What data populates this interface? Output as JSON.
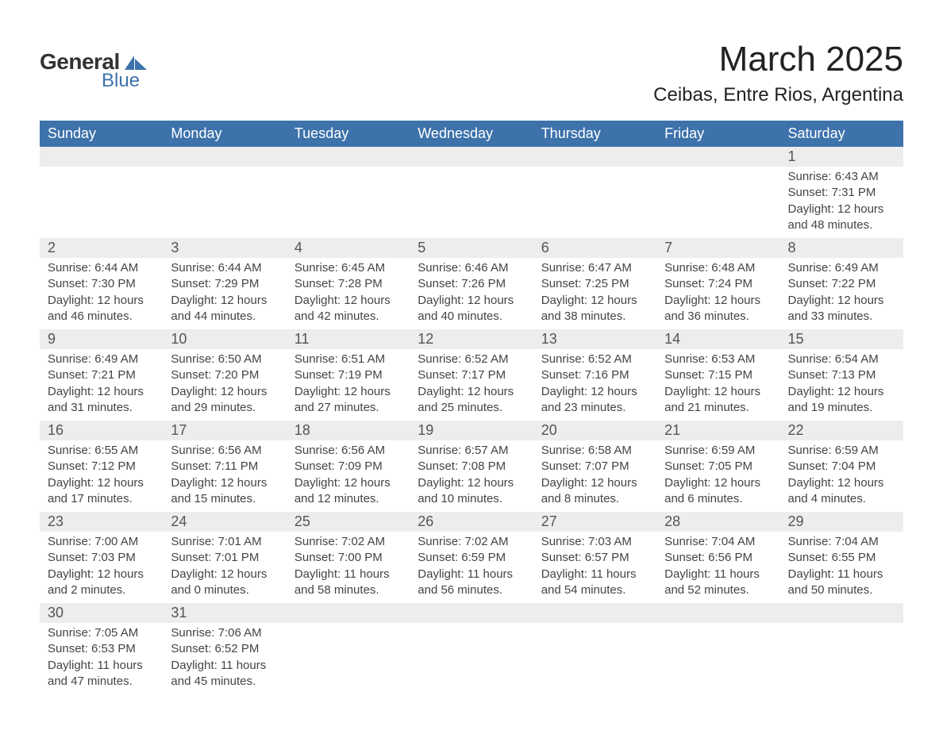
{
  "brand": {
    "text1": "General",
    "text2": "Blue",
    "logo_color": "#3d72ab",
    "text_color": "#333333"
  },
  "title": {
    "month": "March 2025",
    "location": "Ceibas, Entre Rios, Argentina"
  },
  "colors": {
    "header_bg": "#3d72ab",
    "header_text": "#ffffff",
    "daynum_bg": "#ededed",
    "row_border": "#3d72ab",
    "body_text": "#444444",
    "background": "#ffffff"
  },
  "calendar": {
    "day_headers": [
      "Sunday",
      "Monday",
      "Tuesday",
      "Wednesday",
      "Thursday",
      "Friday",
      "Saturday"
    ],
    "weeks": [
      [
        null,
        null,
        null,
        null,
        null,
        null,
        {
          "day": "1",
          "sunrise": "Sunrise: 6:43 AM",
          "sunset": "Sunset: 7:31 PM",
          "daylight1": "Daylight: 12 hours",
          "daylight2": "and 48 minutes."
        }
      ],
      [
        {
          "day": "2",
          "sunrise": "Sunrise: 6:44 AM",
          "sunset": "Sunset: 7:30 PM",
          "daylight1": "Daylight: 12 hours",
          "daylight2": "and 46 minutes."
        },
        {
          "day": "3",
          "sunrise": "Sunrise: 6:44 AM",
          "sunset": "Sunset: 7:29 PM",
          "daylight1": "Daylight: 12 hours",
          "daylight2": "and 44 minutes."
        },
        {
          "day": "4",
          "sunrise": "Sunrise: 6:45 AM",
          "sunset": "Sunset: 7:28 PM",
          "daylight1": "Daylight: 12 hours",
          "daylight2": "and 42 minutes."
        },
        {
          "day": "5",
          "sunrise": "Sunrise: 6:46 AM",
          "sunset": "Sunset: 7:26 PM",
          "daylight1": "Daylight: 12 hours",
          "daylight2": "and 40 minutes."
        },
        {
          "day": "6",
          "sunrise": "Sunrise: 6:47 AM",
          "sunset": "Sunset: 7:25 PM",
          "daylight1": "Daylight: 12 hours",
          "daylight2": "and 38 minutes."
        },
        {
          "day": "7",
          "sunrise": "Sunrise: 6:48 AM",
          "sunset": "Sunset: 7:24 PM",
          "daylight1": "Daylight: 12 hours",
          "daylight2": "and 36 minutes."
        },
        {
          "day": "8",
          "sunrise": "Sunrise: 6:49 AM",
          "sunset": "Sunset: 7:22 PM",
          "daylight1": "Daylight: 12 hours",
          "daylight2": "and 33 minutes."
        }
      ],
      [
        {
          "day": "9",
          "sunrise": "Sunrise: 6:49 AM",
          "sunset": "Sunset: 7:21 PM",
          "daylight1": "Daylight: 12 hours",
          "daylight2": "and 31 minutes."
        },
        {
          "day": "10",
          "sunrise": "Sunrise: 6:50 AM",
          "sunset": "Sunset: 7:20 PM",
          "daylight1": "Daylight: 12 hours",
          "daylight2": "and 29 minutes."
        },
        {
          "day": "11",
          "sunrise": "Sunrise: 6:51 AM",
          "sunset": "Sunset: 7:19 PM",
          "daylight1": "Daylight: 12 hours",
          "daylight2": "and 27 minutes."
        },
        {
          "day": "12",
          "sunrise": "Sunrise: 6:52 AM",
          "sunset": "Sunset: 7:17 PM",
          "daylight1": "Daylight: 12 hours",
          "daylight2": "and 25 minutes."
        },
        {
          "day": "13",
          "sunrise": "Sunrise: 6:52 AM",
          "sunset": "Sunset: 7:16 PM",
          "daylight1": "Daylight: 12 hours",
          "daylight2": "and 23 minutes."
        },
        {
          "day": "14",
          "sunrise": "Sunrise: 6:53 AM",
          "sunset": "Sunset: 7:15 PM",
          "daylight1": "Daylight: 12 hours",
          "daylight2": "and 21 minutes."
        },
        {
          "day": "15",
          "sunrise": "Sunrise: 6:54 AM",
          "sunset": "Sunset: 7:13 PM",
          "daylight1": "Daylight: 12 hours",
          "daylight2": "and 19 minutes."
        }
      ],
      [
        {
          "day": "16",
          "sunrise": "Sunrise: 6:55 AM",
          "sunset": "Sunset: 7:12 PM",
          "daylight1": "Daylight: 12 hours",
          "daylight2": "and 17 minutes."
        },
        {
          "day": "17",
          "sunrise": "Sunrise: 6:56 AM",
          "sunset": "Sunset: 7:11 PM",
          "daylight1": "Daylight: 12 hours",
          "daylight2": "and 15 minutes."
        },
        {
          "day": "18",
          "sunrise": "Sunrise: 6:56 AM",
          "sunset": "Sunset: 7:09 PM",
          "daylight1": "Daylight: 12 hours",
          "daylight2": "and 12 minutes."
        },
        {
          "day": "19",
          "sunrise": "Sunrise: 6:57 AM",
          "sunset": "Sunset: 7:08 PM",
          "daylight1": "Daylight: 12 hours",
          "daylight2": "and 10 minutes."
        },
        {
          "day": "20",
          "sunrise": "Sunrise: 6:58 AM",
          "sunset": "Sunset: 7:07 PM",
          "daylight1": "Daylight: 12 hours",
          "daylight2": "and 8 minutes."
        },
        {
          "day": "21",
          "sunrise": "Sunrise: 6:59 AM",
          "sunset": "Sunset: 7:05 PM",
          "daylight1": "Daylight: 12 hours",
          "daylight2": "and 6 minutes."
        },
        {
          "day": "22",
          "sunrise": "Sunrise: 6:59 AM",
          "sunset": "Sunset: 7:04 PM",
          "daylight1": "Daylight: 12 hours",
          "daylight2": "and 4 minutes."
        }
      ],
      [
        {
          "day": "23",
          "sunrise": "Sunrise: 7:00 AM",
          "sunset": "Sunset: 7:03 PM",
          "daylight1": "Daylight: 12 hours",
          "daylight2": "and 2 minutes."
        },
        {
          "day": "24",
          "sunrise": "Sunrise: 7:01 AM",
          "sunset": "Sunset: 7:01 PM",
          "daylight1": "Daylight: 12 hours",
          "daylight2": "and 0 minutes."
        },
        {
          "day": "25",
          "sunrise": "Sunrise: 7:02 AM",
          "sunset": "Sunset: 7:00 PM",
          "daylight1": "Daylight: 11 hours",
          "daylight2": "and 58 minutes."
        },
        {
          "day": "26",
          "sunrise": "Sunrise: 7:02 AM",
          "sunset": "Sunset: 6:59 PM",
          "daylight1": "Daylight: 11 hours",
          "daylight2": "and 56 minutes."
        },
        {
          "day": "27",
          "sunrise": "Sunrise: 7:03 AM",
          "sunset": "Sunset: 6:57 PM",
          "daylight1": "Daylight: 11 hours",
          "daylight2": "and 54 minutes."
        },
        {
          "day": "28",
          "sunrise": "Sunrise: 7:04 AM",
          "sunset": "Sunset: 6:56 PM",
          "daylight1": "Daylight: 11 hours",
          "daylight2": "and 52 minutes."
        },
        {
          "day": "29",
          "sunrise": "Sunrise: 7:04 AM",
          "sunset": "Sunset: 6:55 PM",
          "daylight1": "Daylight: 11 hours",
          "daylight2": "and 50 minutes."
        }
      ],
      [
        {
          "day": "30",
          "sunrise": "Sunrise: 7:05 AM",
          "sunset": "Sunset: 6:53 PM",
          "daylight1": "Daylight: 11 hours",
          "daylight2": "and 47 minutes."
        },
        {
          "day": "31",
          "sunrise": "Sunrise: 7:06 AM",
          "sunset": "Sunset: 6:52 PM",
          "daylight1": "Daylight: 11 hours",
          "daylight2": "and 45 minutes."
        },
        null,
        null,
        null,
        null,
        null
      ]
    ]
  }
}
